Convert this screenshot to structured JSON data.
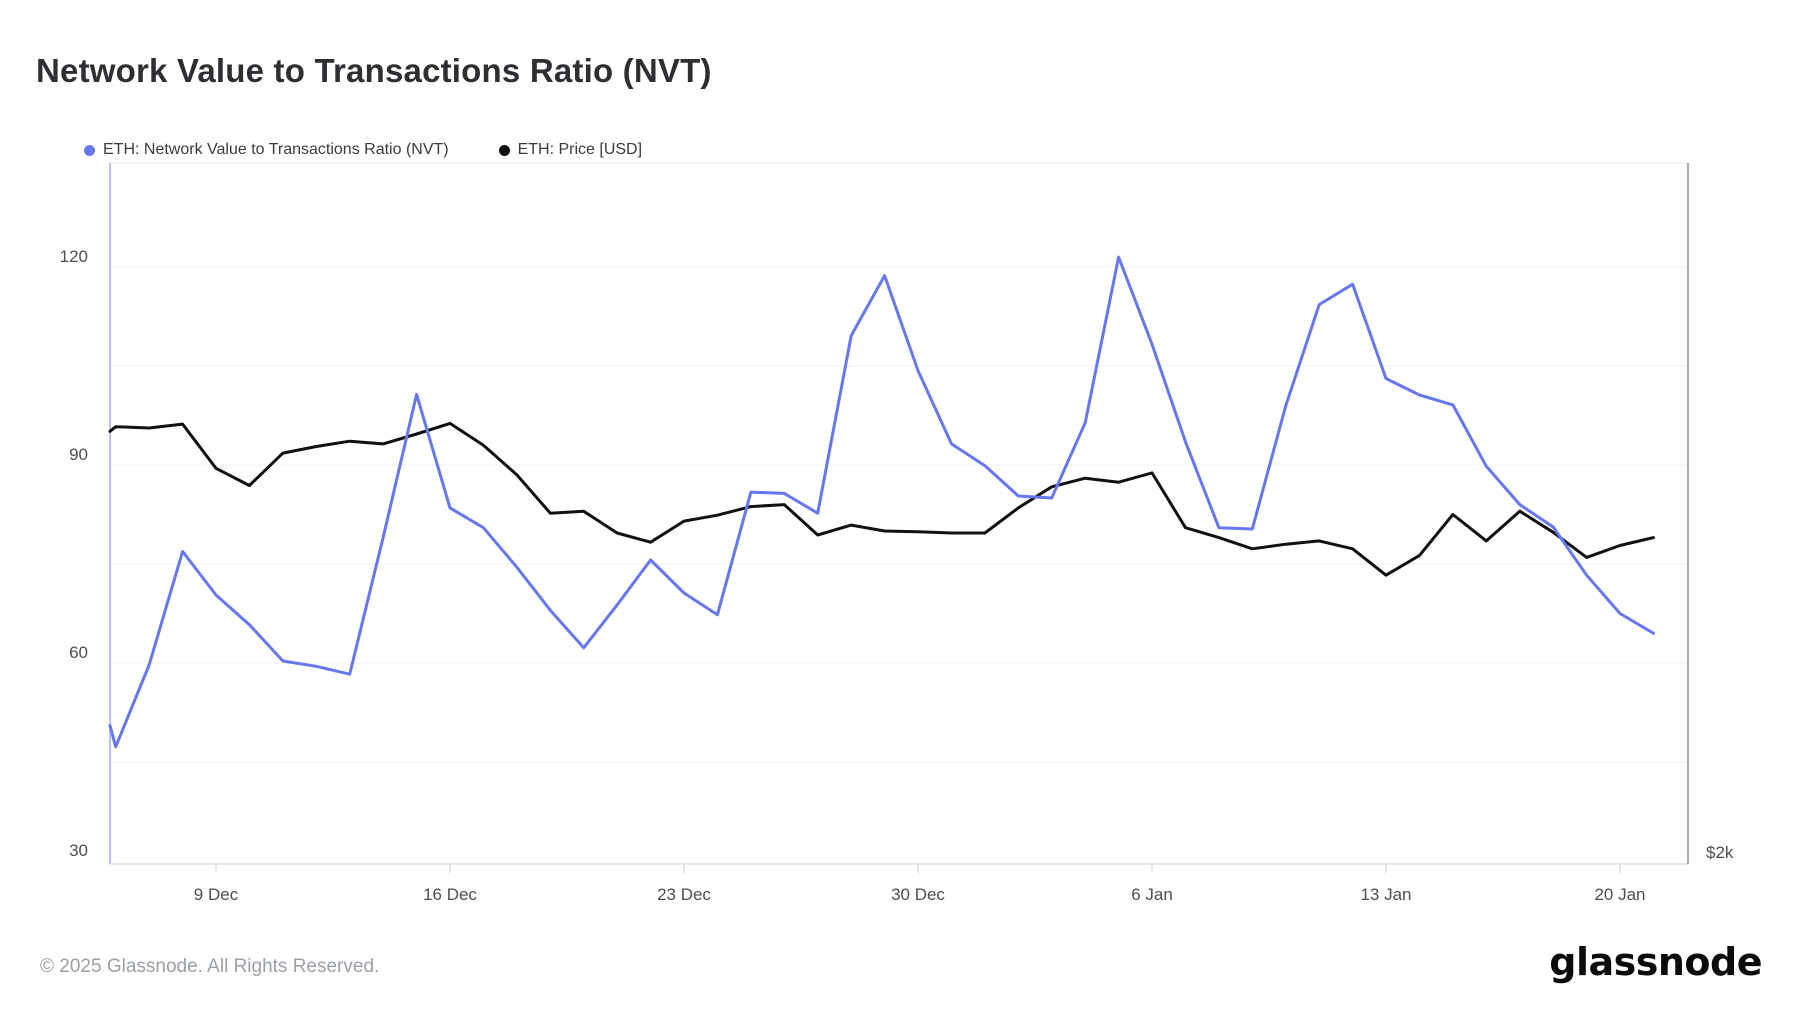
{
  "header": {
    "title": "Network Value to Transactions Ratio (NVT)"
  },
  "footer": {
    "copyright": "© 2025 Glassnode. All Rights Reserved.",
    "logo_text": "glassnode"
  },
  "colors": {
    "nvt_line": "#6577f3",
    "price_line": "#111111",
    "left_axis": "#b8c1f8",
    "right_axis": "#8d8d92",
    "bottom_axis": "#d6d6da",
    "gridline": "#f1f1f3",
    "plot_border": "#e9e9ec",
    "tick": "#cfcfd4"
  },
  "chart_data": {
    "type": "line",
    "title": "Network Value to Transactions Ratio (NVT)",
    "legend_position": "top-left",
    "grid": "horizontal only, every 15 units",
    "y_axis": {
      "side": "left",
      "tick_labels": [
        "120",
        "90",
        "60",
        "30"
      ],
      "tick_values": [
        120,
        90,
        60,
        30
      ],
      "gridline_values": [
        120,
        105,
        90,
        75,
        60,
        45
      ],
      "range": [
        30,
        135
      ]
    },
    "x_axis": {
      "tick_labels": [
        "9 Dec",
        "16 Dec",
        "23 Dec",
        "30 Dec",
        "6 Jan",
        "13 Jan",
        "20 Jan"
      ]
    },
    "right_axis": {
      "visible_label": "$2k",
      "note": "price axis; only the $2k label is visible at the bottom"
    },
    "dates": [
      "6 Dec",
      "7 Dec",
      "8 Dec",
      "9 Dec",
      "10 Dec",
      "11 Dec",
      "12 Dec",
      "13 Dec",
      "14 Dec",
      "15 Dec",
      "16 Dec",
      "17 Dec",
      "18 Dec",
      "19 Dec",
      "20 Dec",
      "21 Dec",
      "22 Dec",
      "23 Dec",
      "24 Dec",
      "25 Dec",
      "26 Dec",
      "27 Dec",
      "28 Dec",
      "29 Dec",
      "30 Dec",
      "31 Dec",
      "1 Jan",
      "2 Jan",
      "3 Jan",
      "4 Jan",
      "5 Jan",
      "6 Jan",
      "7 Jan",
      "8 Jan",
      "9 Jan",
      "10 Jan",
      "11 Jan",
      "12 Jan",
      "13 Jan",
      "14 Jan",
      "15 Jan",
      "16 Jan",
      "17 Jan",
      "18 Jan",
      "19 Jan",
      "20 Jan",
      "21 Jan"
    ],
    "series": [
      {
        "name": "ETH: Network Value to Transactions Ratio (NVT)",
        "color": "#6577f3",
        "axis": "left",
        "edge_start_value": 50.5,
        "values": [
          47.3,
          59.7,
          76.9,
          70.3,
          65.8,
          60.3,
          59.5,
          58.3,
          79,
          100.7,
          83.5,
          80.5,
          74.5,
          68,
          62.3,
          68.8,
          75.6,
          70.6,
          67.3,
          85.9,
          85.7,
          82.7,
          109.6,
          118.7,
          104.3,
          93.2,
          89.9,
          85.3,
          85,
          96.4,
          121.5,
          108.3,
          93.5,
          80.5,
          80.3,
          99,
          114.3,
          117.4,
          103.1,
          100.6,
          99.1,
          89.8,
          84,
          80.6,
          73.3,
          67.5,
          64.5
        ]
      },
      {
        "name": "ETH: Price [USD]",
        "color": "#111111",
        "axis": "right",
        "note": "values expressed as plotted positions on the left-axis scale",
        "edge_start_value": 95.1,
        "values": [
          95.8,
          95.6,
          96.2,
          89.5,
          86.9,
          91.8,
          92.8,
          93.6,
          93.2,
          94.7,
          96.3,
          93,
          88.5,
          82.7,
          83,
          79.7,
          78.3,
          81.5,
          82.4,
          83.7,
          84,
          79.4,
          80.9,
          80,
          79.9,
          79.7,
          79.7,
          83.5,
          86.7,
          88,
          87.4,
          88.8,
          80.5,
          79,
          77.3,
          78,
          78.5,
          77.3,
          73.3,
          76.3,
          82.5,
          78.5,
          83,
          79.8,
          76,
          77.8,
          79
        ]
      }
    ]
  }
}
